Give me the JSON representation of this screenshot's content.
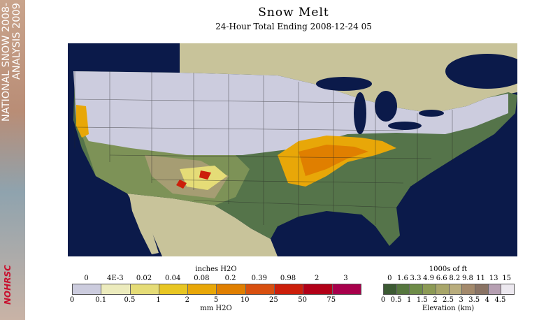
{
  "sidebar": {
    "heading_line1": "NATIONAL SNOW 2008-",
    "heading_line2": "ANALYSIS 2009",
    "logo": "NOHRSC"
  },
  "title": "Snow Melt",
  "subtitle": "24-Hour Total Ending 2008-12-24 05",
  "map": {
    "colors": {
      "ocean": "#0b1a4a",
      "land_outside": "#c8c39a",
      "snow_no_melt": "#ccccde",
      "low_elev": "#55744a",
      "mid_elev": "#7d9257",
      "high_elev": "#a69d73"
    }
  },
  "melt_legend": {
    "top_unit": "inches H2O",
    "top_ticks": [
      "0",
      "4E-3",
      "0.02",
      "0.04",
      "0.08",
      "0.2",
      "0.39",
      "0.98",
      "2",
      "3"
    ],
    "bottom_ticks": [
      "0",
      "0.1",
      "0.5",
      "1",
      "2",
      "5",
      "10",
      "25",
      "50",
      "75"
    ],
    "bottom_unit": "mm H2O",
    "colors": [
      "#ccccde",
      "#ecebbd",
      "#e5dc77",
      "#e8c623",
      "#e8a708",
      "#e07f00",
      "#d85010",
      "#cc1f0b",
      "#b20018",
      "#a8004c"
    ]
  },
  "elev_legend": {
    "top_unit": "1000s of ft",
    "top_ticks": [
      "0",
      "1.6",
      "3.3",
      "4.9",
      "6.6",
      "8.2",
      "9.8",
      "11",
      "13",
      "15"
    ],
    "bottom_ticks": [
      "0",
      "0.5",
      "1",
      "1.5",
      "2",
      "2.5",
      "3",
      "3.5",
      "4",
      "4.5"
    ],
    "bottom_unit": "Elevation (km)",
    "colors": [
      "#3c5a33",
      "#56773f",
      "#6e8c48",
      "#8c9a55",
      "#a8a66a",
      "#b9ad7d",
      "#a3896b",
      "#8a7364",
      "#b69fb2",
      "#ece8ef"
    ]
  }
}
